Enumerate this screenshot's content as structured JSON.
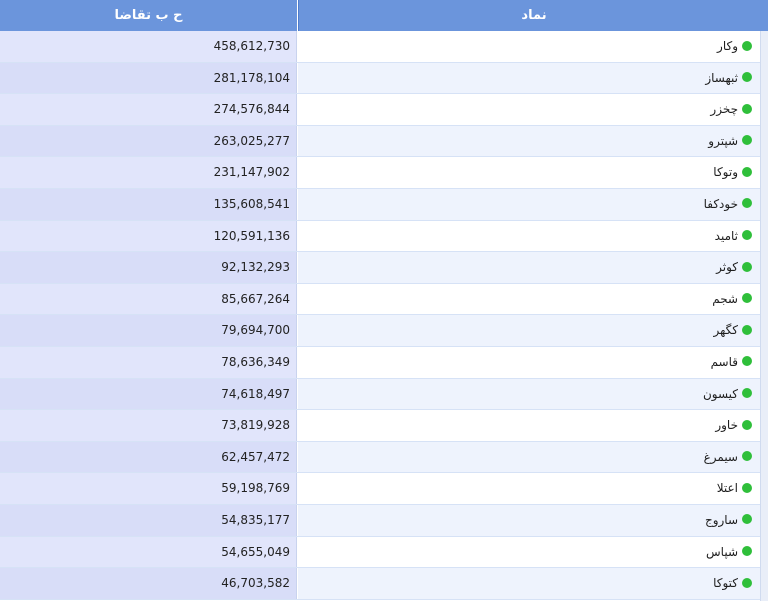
{
  "table": {
    "headers": {
      "symbol": "نماد",
      "value": "ح ب تقاضا"
    },
    "status_color": "#2fbf3a",
    "rows": [
      {
        "symbol": "وکار",
        "value": "458,612,730"
      },
      {
        "symbol": "ثبهساز",
        "value": "281,178,104"
      },
      {
        "symbol": "چخزر",
        "value": "274,576,844"
      },
      {
        "symbol": "شپترو",
        "value": "263,025,277"
      },
      {
        "symbol": "وتوکا",
        "value": "231,147,902"
      },
      {
        "symbol": "خودکفا",
        "value": "135,608,541"
      },
      {
        "symbol": "ثامید",
        "value": "120,591,136"
      },
      {
        "symbol": "کوثر",
        "value": "92,132,293"
      },
      {
        "symbol": "شجم",
        "value": "85,667,264"
      },
      {
        "symbol": "کگهر",
        "value": "79,694,700"
      },
      {
        "symbol": "قاسم",
        "value": "78,636,349"
      },
      {
        "symbol": "کیسون",
        "value": "74,618,497"
      },
      {
        "symbol": "خاور",
        "value": "73,819,928"
      },
      {
        "symbol": "سیمرغ",
        "value": "62,457,472"
      },
      {
        "symbol": "اعتلا",
        "value": "59,198,769"
      },
      {
        "symbol": "ساروج",
        "value": "54,835,177"
      },
      {
        "symbol": "شپاس",
        "value": "54,655,049"
      },
      {
        "symbol": "کتوکا",
        "value": "46,703,582"
      }
    ]
  }
}
